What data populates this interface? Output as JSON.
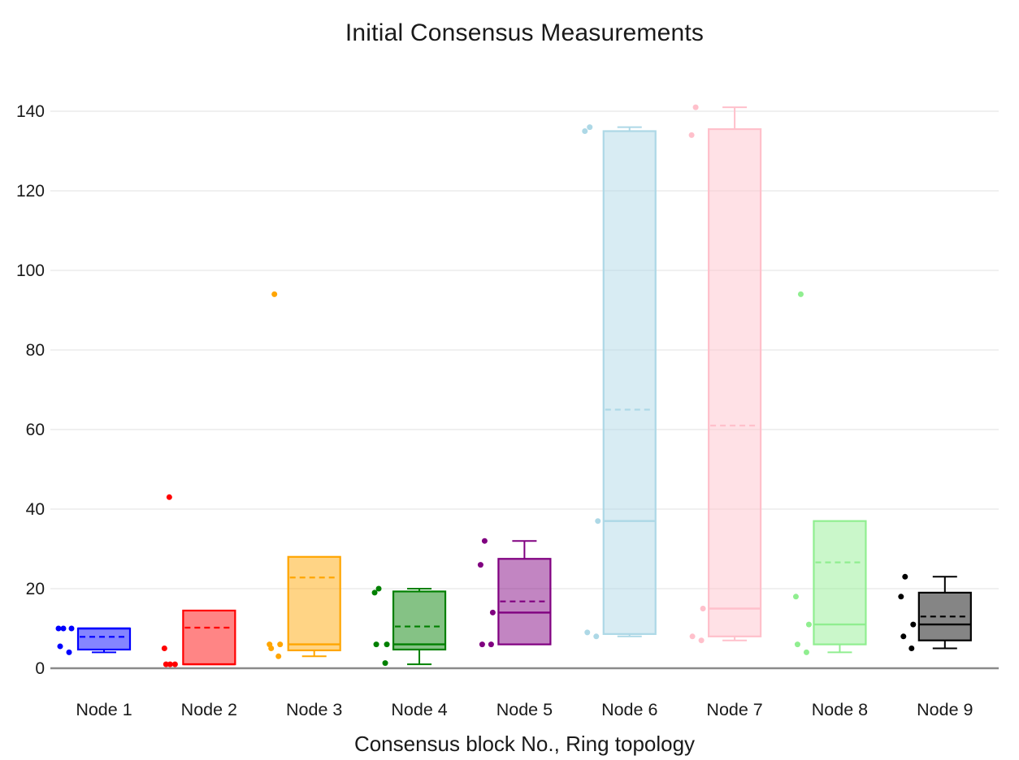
{
  "title": "Initial Consensus Measurements",
  "xlabel": "Consensus block No., Ring topology",
  "chart_data": {
    "type": "box",
    "title": "Initial Consensus Measurements",
    "xlabel": "Consensus block No., Ring topology",
    "ylabel": "",
    "ylim": [
      0,
      147
    ],
    "yticks": [
      0,
      20,
      40,
      60,
      80,
      100,
      120,
      140
    ],
    "grid": "horizontal",
    "legend": "none",
    "categories": [
      "Node 1",
      "Node 2",
      "Node 3",
      "Node 4",
      "Node 5",
      "Node 6",
      "Node 7",
      "Node 8",
      "Node 9"
    ],
    "series": [
      {
        "label": "Node 1",
        "color": "#0000ff",
        "whisker_low": 4,
        "q1": 4.7,
        "median": 10,
        "mean": 7.9,
        "q3": 10,
        "whisker_high": 10,
        "points": [
          10,
          10,
          10,
          5.5,
          4
        ],
        "point_dx": [
          -56,
          -50,
          -40,
          -54,
          -43
        ]
      },
      {
        "label": "Node 2",
        "color": "#ff0000",
        "whisker_low": 1,
        "q1": 1,
        "median": 1,
        "mean": 10.2,
        "q3": 14.5,
        "whisker_high": 14.5,
        "points": [
          43,
          5,
          1,
          1,
          1
        ],
        "point_dx": [
          -49,
          -55,
          -53,
          -42,
          -48
        ]
      },
      {
        "label": "Node 3",
        "color": "#ffa500",
        "whisker_low": 3,
        "q1": 4.5,
        "median": 6,
        "mean": 22.8,
        "q3": 28,
        "whisker_high": 28,
        "points": [
          94,
          6,
          6,
          5,
          3
        ],
        "point_dx": [
          -49,
          -55,
          -42,
          -53,
          -44
        ]
      },
      {
        "label": "Node 4",
        "color": "#008000",
        "whisker_low": 1,
        "q1": 4.7,
        "median": 6,
        "mean": 10.5,
        "q3": 19.3,
        "whisker_high": 20,
        "points": [
          20,
          19,
          6,
          6,
          1.3
        ],
        "point_dx": [
          -50,
          -55,
          -53,
          -40,
          -42
        ]
      },
      {
        "label": "Node 5",
        "color": "#800080",
        "whisker_low": 6,
        "q1": 6,
        "median": 14,
        "mean": 16.8,
        "q3": 27.5,
        "whisker_high": 32,
        "points": [
          32,
          26,
          14,
          6,
          6
        ],
        "point_dx": [
          -49,
          -54,
          -39,
          -52,
          -41
        ]
      },
      {
        "label": "Node 6",
        "color": "#add8e6",
        "whisker_low": 8,
        "q1": 8.6,
        "median": 37,
        "mean": 65,
        "q3": 135,
        "whisker_high": 136,
        "points": [
          136,
          135,
          37,
          9,
          8
        ],
        "point_dx": [
          -49,
          -55,
          -39,
          -52,
          -41
        ]
      },
      {
        "label": "Node 7",
        "color": "#ffc0cb",
        "whisker_low": 7,
        "q1": 8,
        "median": 15,
        "mean": 61,
        "q3": 135.5,
        "whisker_high": 141,
        "points": [
          141,
          134,
          15,
          8,
          7
        ],
        "point_dx": [
          -48,
          -53,
          -39,
          -52,
          -41
        ]
      },
      {
        "label": "Node 8",
        "color": "#90ee90",
        "whisker_low": 4,
        "q1": 6,
        "median": 11,
        "mean": 26.6,
        "q3": 37,
        "whisker_high": 37,
        "points": [
          94,
          18,
          11,
          6,
          4
        ],
        "point_dx": [
          -48,
          -54,
          -38,
          -52,
          -41
        ]
      },
      {
        "label": "Node 9",
        "color": "#000000",
        "whisker_low": 5,
        "q1": 7,
        "median": 11,
        "mean": 13,
        "q3": 19,
        "whisker_high": 23,
        "points": [
          23,
          18,
          11,
          8,
          5
        ],
        "point_dx": [
          -49,
          -54,
          -39,
          -51,
          -41
        ]
      }
    ],
    "style": {
      "box_fill_opacity": 0.48,
      "gridline_color": "#e8e8e8",
      "baseline_color": "#8a8a8a",
      "tick_label_color": "#1a1a1a",
      "mean_line_style": "dashed",
      "median_line_style": "solid"
    }
  }
}
